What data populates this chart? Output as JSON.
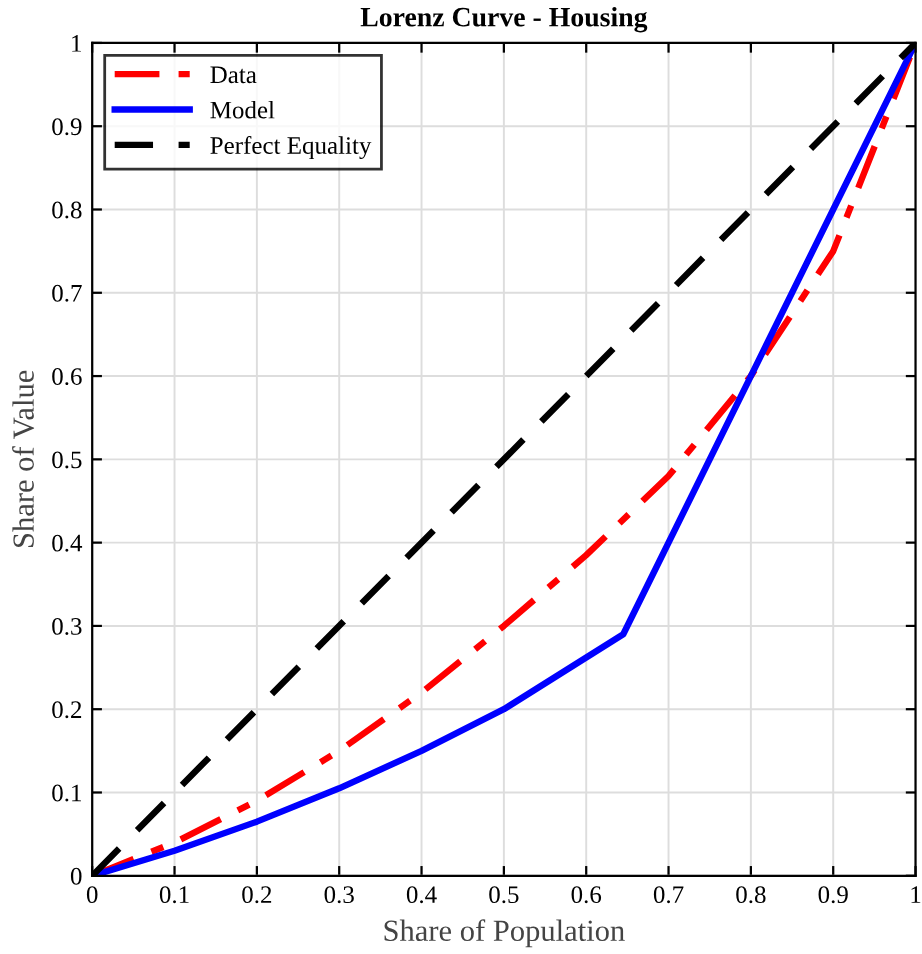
{
  "chart_data": {
    "type": "line",
    "title": "Lorenz Curve - Housing",
    "xlabel": "Share of Population",
    "ylabel": "Share of Value",
    "xlim": [
      0,
      1
    ],
    "ylim": [
      0,
      1
    ],
    "xticks": [
      0,
      0.1,
      0.2,
      0.3,
      0.4,
      0.5,
      0.6,
      0.7,
      0.8,
      0.9,
      1
    ],
    "yticks": [
      0,
      0.1,
      0.2,
      0.3,
      0.4,
      0.5,
      0.6,
      0.7,
      0.8,
      0.9,
      1
    ],
    "grid": true,
    "legend": "top left",
    "marker": "none",
    "series": [
      {
        "name": "Data",
        "color": "#ff0000",
        "line_style": "dashdot",
        "x": [
          0,
          0.1,
          0.2,
          0.3,
          0.4,
          0.5,
          0.6,
          0.7,
          0.8,
          0.9,
          1
        ],
        "values": [
          0,
          0.04,
          0.09,
          0.15,
          0.22,
          0.3,
          0.385,
          0.48,
          0.6,
          0.75,
          1
        ]
      },
      {
        "name": "Model",
        "color": "#0000ff",
        "line_style": "solid",
        "x": [
          0,
          0.1,
          0.2,
          0.3,
          0.4,
          0.5,
          0.645,
          0.8,
          0.9,
          1
        ],
        "values": [
          0,
          0.03,
          0.065,
          0.105,
          0.15,
          0.2,
          0.29,
          0.6,
          0.8,
          1
        ]
      },
      {
        "name": "Perfect Equality",
        "color": "#000000",
        "line_style": "dashed",
        "x": [
          0,
          1
        ],
        "values": [
          0,
          1
        ]
      }
    ]
  }
}
